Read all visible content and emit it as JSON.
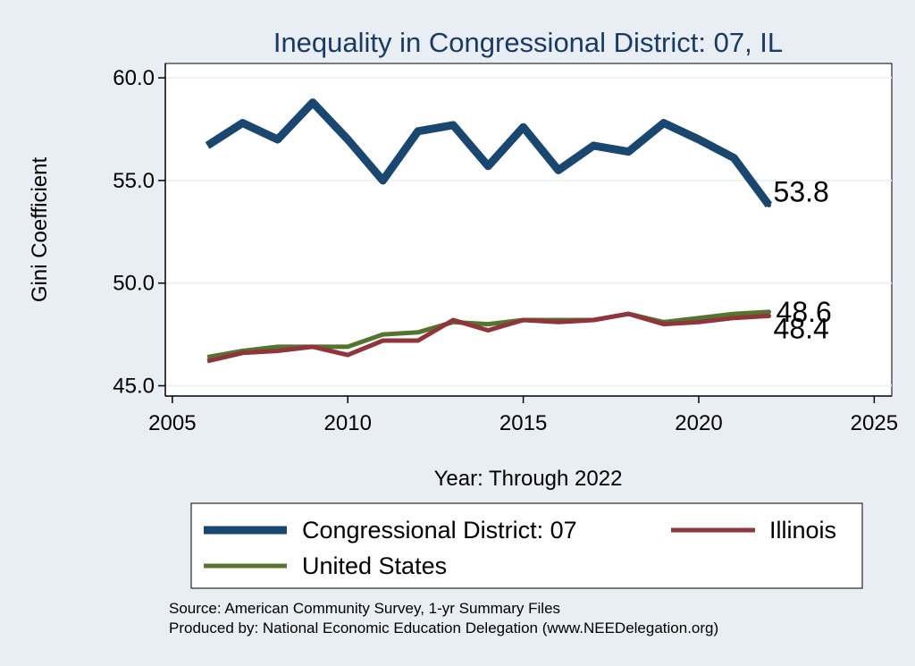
{
  "chart_data": {
    "type": "line",
    "title": "Inequality in Congressional District:  07, IL",
    "xlabel": "Year: Through 2022",
    "ylabel": "Gini Coefficient",
    "xlim": [
      2004.8,
      2025.5
    ],
    "ylim": [
      44.5,
      60.7
    ],
    "xticks": [
      2005,
      2010,
      2015,
      2020,
      2025
    ],
    "yticks": [
      45,
      50,
      55,
      60
    ],
    "ytick_labels": [
      "45.0",
      "50.0",
      "55.0",
      "60.0"
    ],
    "x": [
      2006,
      2007,
      2008,
      2009,
      2010,
      2011,
      2012,
      2013,
      2014,
      2015,
      2016,
      2017,
      2018,
      2019,
      2020,
      2021,
      2022
    ],
    "series": [
      {
        "name": "Congressional District:  07",
        "color": "#1a476f",
        "values": [
          56.7,
          57.8,
          57.0,
          58.8,
          57.0,
          55.0,
          57.4,
          57.7,
          55.7,
          57.6,
          55.5,
          56.7,
          56.4,
          57.8,
          57.0,
          56.1,
          53.8
        ],
        "end_label": "53.8"
      },
      {
        "name": "Illinois",
        "color": "#90353b",
        "values": [
          46.2,
          46.6,
          46.7,
          46.9,
          46.5,
          47.2,
          47.2,
          48.2,
          47.7,
          48.2,
          48.1,
          48.2,
          48.5,
          48.0,
          48.1,
          48.3,
          48.4
        ],
        "end_label": "48.4"
      },
      {
        "name": "United States",
        "color": "#55752f",
        "values": [
          46.4,
          46.7,
          46.9,
          46.9,
          46.9,
          47.5,
          47.6,
          48.1,
          48.0,
          48.2,
          48.2,
          48.2,
          48.5,
          48.1,
          48.3,
          48.5,
          48.6
        ],
        "end_label": "48.6"
      }
    ],
    "legend_position": "bottom"
  },
  "notes": {
    "source": "Source: American Community Survey, 1-yr Summary Files",
    "produced": "Produced by: National Economic Education Delegation (www.NEEDelegation.org)"
  }
}
